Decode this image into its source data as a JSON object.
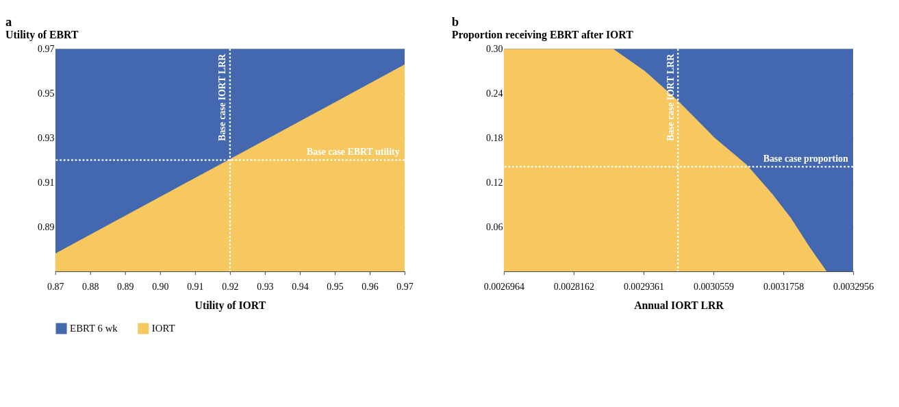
{
  "chart_data": [
    {
      "type": "area",
      "title": "a",
      "ylabel": "Utility of EBRT",
      "xlabel": "Utility of IORT",
      "x": [
        0.87,
        0.97
      ],
      "series": [
        {
          "name": "EBRT 6 wk",
          "color": "#4468b0",
          "values": [
            0.97,
            0.97
          ]
        },
        {
          "name": "IORT",
          "color": "#f6c85f",
          "values": [
            0.878,
            0.963
          ]
        }
      ],
      "xlim": [
        0.87,
        0.97
      ],
      "xticks": [
        0.87,
        0.88,
        0.89,
        {
          "value": 0.9,
          "label": "0.90"
        },
        0.91,
        0.92,
        0.93,
        0.94,
        0.95,
        0.96,
        0.97
      ],
      "ylim": [
        0.87,
        0.97
      ],
      "yticks": [
        0.89,
        0.91,
        0.93,
        0.95,
        0.97
      ],
      "ref_lines": [
        {
          "axis": "x",
          "value": 0.92,
          "label": "Base case IORT LRR",
          "color": "#ffffff",
          "line_style": "dotted"
        },
        {
          "axis": "y",
          "value": 0.92,
          "label": "Base case EBRT utility",
          "color": "#ffffff",
          "line_style": "dotted"
        }
      ],
      "grid": "y",
      "legend": "bottom"
    },
    {
      "type": "area",
      "title": "b",
      "ylabel": "Proportion receiving EBRT after IORT",
      "xlabel": "Annual IORT LRR",
      "x": [
        0.0026964,
        0.0032956
      ],
      "series": [
        {
          "name": "EBRT 6 wk",
          "color": "#4468b0",
          "values": [
            0.3,
            0.3
          ]
        },
        {
          "name": "IORT",
          "color": "#f6c85f",
          "x": [
            0.0026964,
            0.0028838,
            0.0029383,
            0.0029927,
            0.0030581,
            0.0031126,
            0.0031562,
            0.0031888,
            0.0032215,
            0.0032499
          ],
          "values": [
            0.3,
            0.3,
            0.27,
            0.232,
            0.18,
            0.144,
            0.105,
            0.072,
            0.032,
            0.0
          ]
        }
      ],
      "xlim": [
        0.0026964,
        0.0032956
      ],
      "xticks": [
        0.0026964,
        0.0028162,
        0.0029361,
        0.0030559,
        0.0031758,
        0.0032956
      ],
      "ylim": [
        0,
        0.3
      ],
      "yticks": [
        0.06,
        0.12,
        0.18,
        0.24,
        {
          "value": 0.3,
          "label": "0.30"
        }
      ],
      "ref_lines": [
        {
          "axis": "x",
          "value": 0.002995,
          "label": "Base case IORT LRR",
          "color": "#ffffff",
          "line_style": "dotted"
        },
        {
          "axis": "y",
          "value": 0.141,
          "label": "Base case proportion",
          "color": "#ffffff",
          "line_style": "dotted"
        }
      ],
      "grid": "y"
    }
  ]
}
